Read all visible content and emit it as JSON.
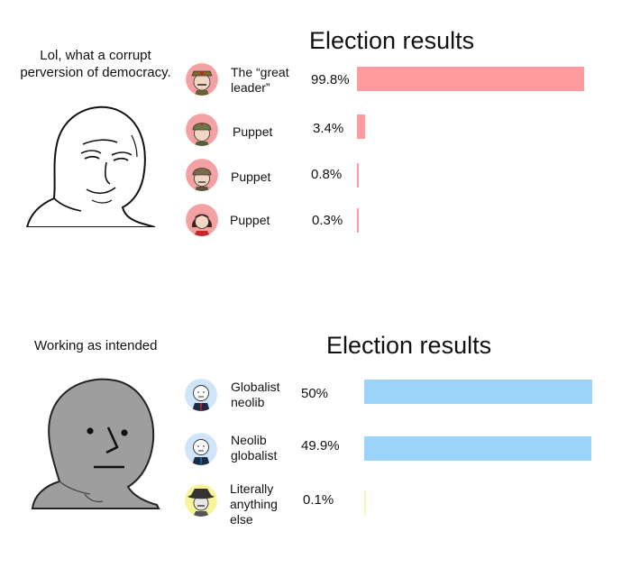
{
  "panels": [
    {
      "caption": "Lol, what a corrupt perversion of democracy.",
      "title": "Election results",
      "bar_color": "#ff9a9e"
    },
    {
      "caption": "Working as intended",
      "title": "Election results",
      "bar_color": "#9bd3f9"
    }
  ],
  "chart_data": [
    {
      "type": "bar",
      "title": "Election results",
      "orientation": "horizontal",
      "categories": [
        "The “great leader”",
        "Puppet",
        "Puppet",
        "Puppet"
      ],
      "values": [
        99.8,
        3.4,
        0.8,
        0.3
      ],
      "value_labels": [
        "99.8%",
        "3.4%",
        "0.8%",
        "0.3%"
      ],
      "xlim": [
        0,
        100
      ],
      "color": "#ff9a9e",
      "avatar_icons": [
        "dictator-cap-icon",
        "soldier-helmet-icon",
        "soldier-helmet-icon",
        "woman-bob-hair-icon"
      ],
      "avatar_bg": "#f4a1a3"
    },
    {
      "type": "bar",
      "title": "Election results",
      "orientation": "horizontal",
      "categories": [
        "Globalist neolib",
        "Neolib globalist",
        "Literally anything else"
      ],
      "values": [
        50,
        49.9,
        0.1
      ],
      "value_labels": [
        "50%",
        "49.9%",
        "0.1%"
      ],
      "xlim": [
        0,
        50
      ],
      "colors": [
        "#9bd3f9",
        "#9bd3f9",
        "#f4f7b5"
      ],
      "avatar_icons": [
        "wojak-suit-icon",
        "wojak-suit-icon",
        "cowboy-hat-icon"
      ],
      "avatar_bgs": [
        "#cfe6fa",
        "#cfe6fa",
        "#f7f49a"
      ]
    }
  ]
}
